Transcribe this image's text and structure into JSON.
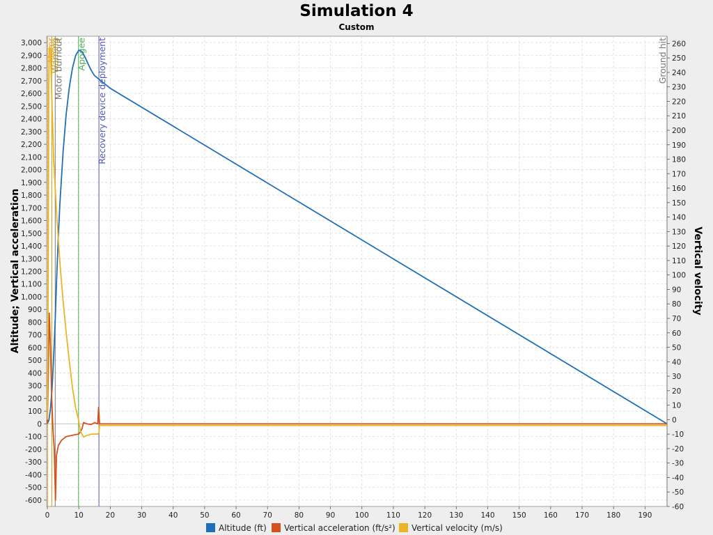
{
  "chart_data": {
    "type": "line",
    "title": "Simulation 4",
    "subtitle": "Custom",
    "y_left_label": "Altitude; Vertical acceleration",
    "y_right_label": "Vertical velocity",
    "x_range": [
      0,
      197
    ],
    "y_left_range": [
      -650,
      3050
    ],
    "y_right_range": [
      -60,
      265
    ],
    "x_ticks": [
      0,
      10,
      20,
      30,
      40,
      50,
      60,
      70,
      80,
      90,
      100,
      110,
      120,
      130,
      140,
      150,
      160,
      170,
      180,
      190
    ],
    "y_left_ticks": [
      -600,
      -500,
      -400,
      -300,
      -200,
      -100,
      0,
      100,
      200,
      300,
      400,
      500,
      600,
      700,
      800,
      900,
      1000,
      1100,
      1200,
      1300,
      1400,
      1500,
      1600,
      1700,
      1800,
      1900,
      2000,
      2100,
      2200,
      2300,
      2400,
      2500,
      2600,
      2700,
      2800,
      2900,
      3000
    ],
    "y_right_ticks": [
      -60,
      -50,
      -40,
      -30,
      -20,
      -10,
      0,
      10,
      20,
      30,
      40,
      50,
      60,
      70,
      80,
      90,
      100,
      110,
      120,
      130,
      140,
      150,
      160,
      170,
      180,
      190,
      200,
      210,
      220,
      230,
      240,
      250,
      260
    ],
    "grid": true,
    "legend_position": "bottom",
    "events": [
      {
        "name": "Motor ignition",
        "label": "Motor",
        "t": 0.1,
        "color": "#e8a23a"
      },
      {
        "name": "Warning",
        "label": "Warning",
        "t": 1.4,
        "color": "#c8a000"
      },
      {
        "name": "Motor burnout",
        "label": "Motor burnout",
        "t": 2.5,
        "color": "#777777"
      },
      {
        "name": "Apogee",
        "label": "Apogee",
        "t": 9.9,
        "color": "#4caf50"
      },
      {
        "name": "Recovery device deployment",
        "label": "Recovery device deployment",
        "t": 16.4,
        "color": "#5555bb"
      },
      {
        "name": "Ground hit",
        "label": "Ground hit",
        "t": 197,
        "color": "#777777"
      }
    ],
    "series": [
      {
        "name": "Altitude (ft)",
        "color": "#1f6fb8",
        "axis": "left",
        "points": [
          [
            0,
            0
          ],
          [
            0.5,
            30
          ],
          [
            1,
            120
          ],
          [
            1.5,
            280
          ],
          [
            2,
            520
          ],
          [
            2.5,
            820
          ],
          [
            3,
            1180
          ],
          [
            3.5,
            1480
          ],
          [
            4,
            1740
          ],
          [
            5,
            2140
          ],
          [
            6,
            2440
          ],
          [
            7,
            2650
          ],
          [
            8,
            2800
          ],
          [
            9,
            2900
          ],
          [
            10,
            2940
          ],
          [
            11,
            2930
          ],
          [
            12,
            2885
          ],
          [
            13,
            2830
          ],
          [
            14,
            2780
          ],
          [
            15,
            2740
          ],
          [
            16,
            2720
          ],
          [
            16.5,
            2710
          ],
          [
            17,
            2700
          ],
          [
            18,
            2680
          ],
          [
            19,
            2660
          ],
          [
            20,
            2640
          ],
          [
            197,
            0
          ]
        ]
      },
      {
        "name": "Vertical acceleration (ft/s²)",
        "color": "#d4501c",
        "axis": "left",
        "points": [
          [
            0,
            0
          ],
          [
            0.3,
            400
          ],
          [
            0.6,
            870
          ],
          [
            1,
            600
          ],
          [
            1.4,
            200
          ],
          [
            1.8,
            -50
          ],
          [
            2.2,
            -200
          ],
          [
            2.6,
            -600
          ],
          [
            2.9,
            -250
          ],
          [
            3.5,
            -170
          ],
          [
            4.5,
            -130
          ],
          [
            6,
            -100
          ],
          [
            8,
            -90
          ],
          [
            10,
            -80
          ],
          [
            11,
            -40
          ],
          [
            11.5,
            10
          ],
          [
            12.5,
            0
          ],
          [
            14,
            -5
          ],
          [
            15,
            10
          ],
          [
            16,
            0
          ],
          [
            16.3,
            130
          ],
          [
            16.6,
            0
          ],
          [
            20,
            0
          ],
          [
            197,
            0
          ]
        ]
      },
      {
        "name": "Vertical velocity (m/s)",
        "color": "#ebb424",
        "axis": "right",
        "points": [
          [
            0,
            0
          ],
          [
            0.15,
            50
          ],
          [
            0.3,
            120
          ],
          [
            0.45,
            230
          ],
          [
            0.6,
            255
          ],
          [
            0.8,
            258
          ],
          [
            1,
            255
          ],
          [
            1.2,
            240
          ],
          [
            1.6,
            210
          ],
          [
            2,
            180
          ],
          [
            2.5,
            160
          ],
          [
            3,
            140
          ],
          [
            4,
            108
          ],
          [
            5,
            82
          ],
          [
            6,
            60
          ],
          [
            7,
            40
          ],
          [
            8,
            22
          ],
          [
            9,
            8
          ],
          [
            9.9,
            0
          ],
          [
            10.5,
            -8
          ],
          [
            11.5,
            -12
          ],
          [
            12.5,
            -11
          ],
          [
            14,
            -10
          ],
          [
            15,
            -10
          ],
          [
            16,
            -10
          ],
          [
            16.4,
            -9
          ],
          [
            16.6,
            -4
          ],
          [
            20,
            -4
          ],
          [
            197,
            -4
          ]
        ]
      }
    ]
  }
}
